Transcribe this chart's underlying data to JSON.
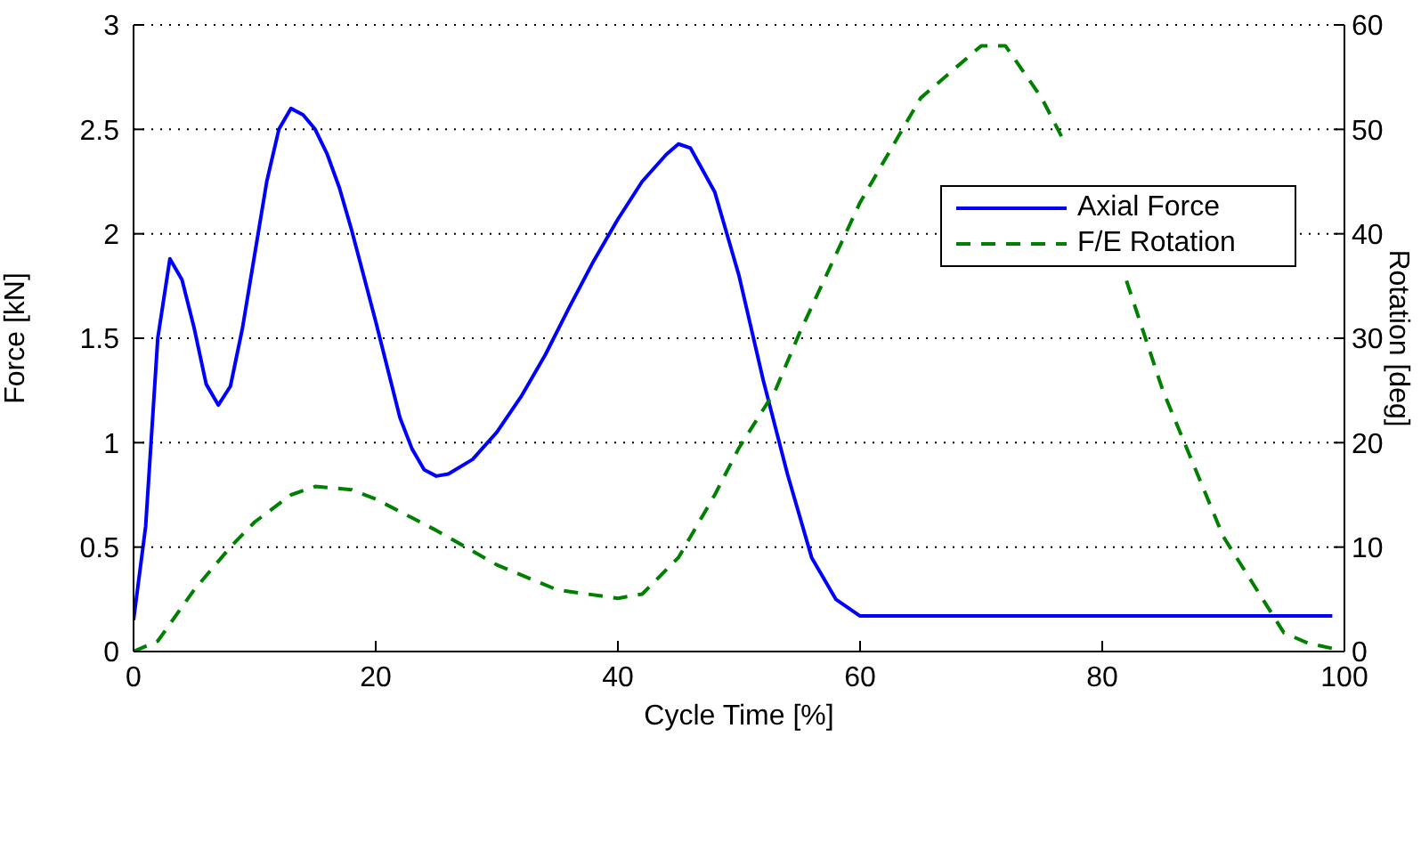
{
  "chart_data": {
    "type": "line",
    "xlabel": "Cycle Time [%]",
    "ylabel": "Force [kN]",
    "y2label": "Rotation [deg]",
    "xlim": [
      0,
      100
    ],
    "xticks": [
      0,
      20,
      40,
      60,
      80,
      100
    ],
    "ylim": [
      0,
      3
    ],
    "yticks": [
      0,
      0.5,
      1,
      1.5,
      2,
      2.5,
      3
    ],
    "y2lim": [
      0,
      60
    ],
    "y2ticks": [
      0,
      10,
      20,
      30,
      40,
      50,
      60
    ],
    "grid": "y",
    "legend": "top right",
    "marker": "none",
    "series": [
      {
        "name": "Axial Force",
        "color": "#0000ff",
        "line_style": "solid",
        "x": [
          0,
          1,
          2,
          3,
          4,
          5,
          6,
          7,
          8,
          9,
          10,
          11,
          12,
          13,
          14,
          15,
          16,
          17,
          18,
          19,
          20,
          21,
          22,
          23,
          24,
          25,
          26,
          28,
          30,
          32,
          34,
          36,
          38,
          40,
          42,
          44,
          45,
          46,
          48,
          50,
          52,
          54,
          56,
          58,
          60,
          99
        ],
        "values": [
          0.15,
          0.6,
          1.5,
          1.88,
          1.78,
          1.55,
          1.28,
          1.18,
          1.27,
          1.55,
          1.9,
          2.25,
          2.5,
          2.6,
          2.57,
          2.5,
          2.38,
          2.22,
          2.02,
          1.8,
          1.58,
          1.35,
          1.12,
          0.97,
          0.87,
          0.84,
          0.85,
          0.92,
          1.05,
          1.22,
          1.42,
          1.65,
          1.87,
          2.07,
          2.25,
          2.38,
          2.43,
          2.41,
          2.2,
          1.8,
          1.3,
          0.85,
          0.45,
          0.25,
          0.17,
          0.17
        ]
      },
      {
        "name": "F/E Rotation",
        "color": "#008000",
        "line_style": "dashed",
        "axis": "y2",
        "x": [
          0,
          2,
          5,
          8,
          10,
          13,
          15,
          18,
          20,
          25,
          30,
          35,
          40,
          42,
          45,
          48,
          50,
          53,
          55,
          60,
          65,
          70,
          72,
          75,
          77,
          80,
          82,
          85,
          90,
          95,
          97,
          99
        ],
        "values": [
          0,
          1,
          5.9,
          10,
          12.4,
          15,
          15.8,
          15.5,
          14.6,
          11.6,
          8.3,
          5.9,
          5.1,
          5.5,
          9,
          15,
          19.5,
          25,
          30.5,
          43,
          53,
          58,
          58,
          53,
          48.5,
          null,
          35.5,
          25,
          11,
          1.8,
          0.8,
          0.3
        ]
      }
    ]
  }
}
